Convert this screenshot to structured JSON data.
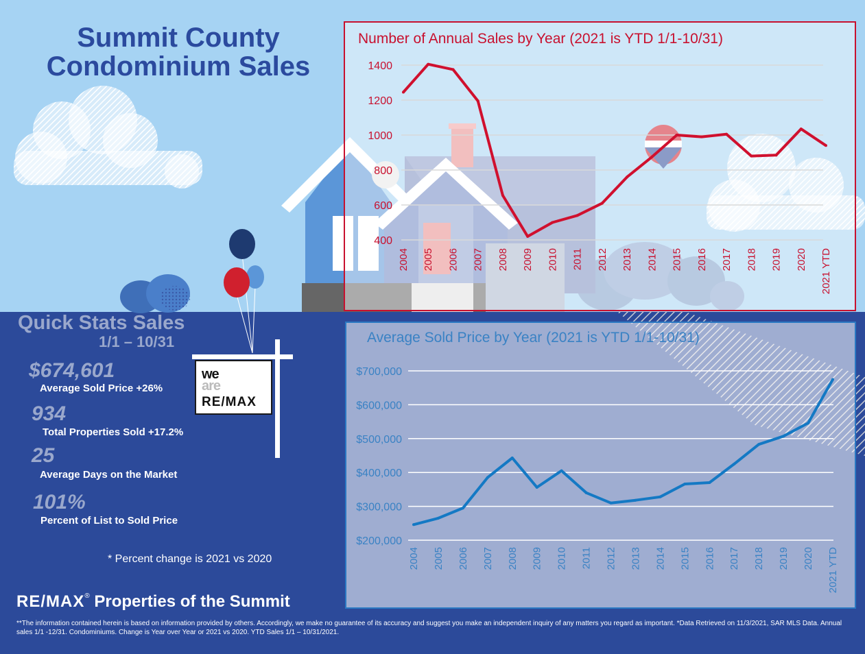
{
  "header": {
    "title_line1": "Summit County",
    "title_line2": "Condominium Sales"
  },
  "quick_stats": {
    "title": "Quick Stats Sales",
    "range": "1/1 – 10/31",
    "items": [
      {
        "value": "$674,601",
        "label": "Average Sold Price +26%"
      },
      {
        "value": "934",
        "label": "Total Properties Sold +17.2%"
      },
      {
        "value": "25",
        "label": "Average Days on the Market"
      },
      {
        "value": "101%",
        "label": "Percent of List to Sold Price"
      }
    ],
    "footnote": "* Percent change is 2021 vs 2020"
  },
  "sign": {
    "line1": "we",
    "line2": "are",
    "line3": "RE/MAX"
  },
  "brand": {
    "logo": "RE/MAX",
    "name": "Properties of the Summit"
  },
  "disclaimer": "**The information contained herein is based on information provided by others. Accordingly, we make no guarantee of its accuracy and suggest you make an independent inquiry of any matters you regard as important. *Data Retrieved on 11/3/2021, SAR MLS Data. Annual sales 1/1 -12/31. Condominiums. Change is Year over Year or 2021 vs 2020. YTD Sales 1/1 – 10/31/2021.",
  "colors": {
    "sky": "#a6d3f3",
    "ground": "#2c4a9a",
    "sales_line": "#d0102e",
    "price_line": "#1479c4"
  },
  "chart_data": [
    {
      "type": "line",
      "title": "Number of Annual Sales by Year (2021 is YTD 1/1-10/31)",
      "categories": [
        "2004",
        "2005",
        "2006",
        "2007",
        "2008",
        "2009",
        "2010",
        "2011",
        "2012",
        "2013",
        "2014",
        "2015",
        "2016",
        "2017",
        "2018",
        "2019",
        "2020",
        "2021 YTD"
      ],
      "yticks": [
        "400",
        "600",
        "800",
        "1000",
        "1200",
        "1400"
      ],
      "ylim": [
        400,
        1400
      ],
      "series": [
        {
          "name": "Annual Sales",
          "values": [
            1245,
            1405,
            1375,
            1195,
            655,
            420,
            500,
            540,
            610,
            760,
            875,
            1000,
            990,
            1005,
            880,
            885,
            1035,
            940
          ]
        }
      ]
    },
    {
      "type": "line",
      "title": "Average Sold Price by Year (2021 is YTD 1/1-10/31)",
      "categories": [
        "2004",
        "2005",
        "2006",
        "2007",
        "2008",
        "2009",
        "2010",
        "2011",
        "2012",
        "2013",
        "2014",
        "2015",
        "2016",
        "2017",
        "2018",
        "2019",
        "2020",
        "2021 YTD"
      ],
      "yticks": [
        "$200,000",
        "$300,000",
        "$400,000",
        "$500,000",
        "$600,000",
        "$700,000"
      ],
      "ylim": [
        200000,
        700000
      ],
      "series": [
        {
          "name": "Average Sold Price",
          "values": [
            246000,
            265000,
            295000,
            385000,
            443000,
            356000,
            405000,
            340000,
            310000,
            318000,
            328000,
            366000,
            370000,
            425000,
            483000,
            507000,
            546000,
            674601
          ]
        }
      ]
    }
  ]
}
